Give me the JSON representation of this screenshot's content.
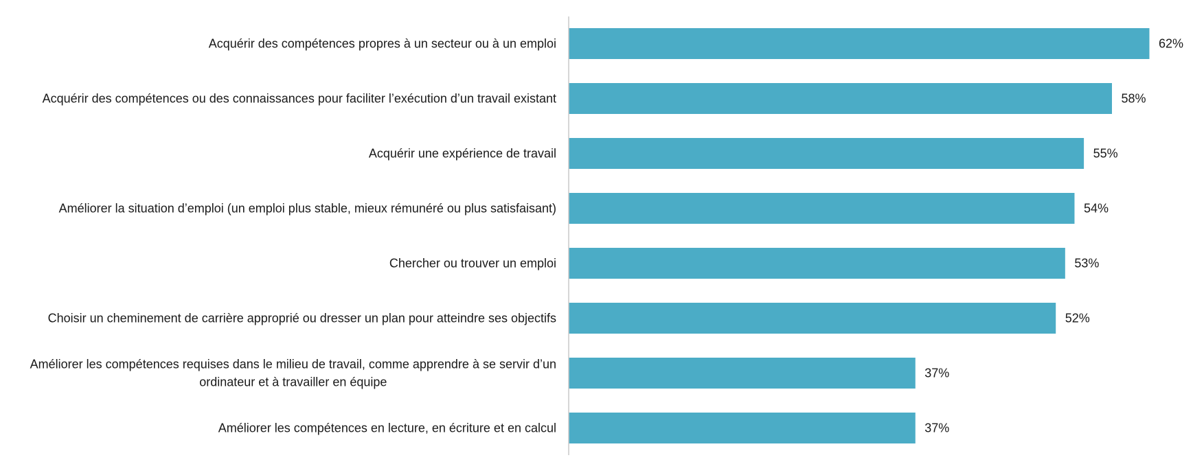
{
  "chart_data": {
    "type": "bar",
    "orientation": "horizontal",
    "title": "",
    "xlabel": "",
    "ylabel": "",
    "xlim": [
      0,
      62
    ],
    "grid": false,
    "legend": "none",
    "bar_color": "#4BACC6",
    "value_suffix": "%",
    "categories": [
      [
        "Acquérir des compétences propres à un secteur ou à un emploi"
      ],
      [
        "Acquérir des compétences ou des connaissances pour faciliter l’exécution d’un travail existant"
      ],
      [
        "Acquérir une expérience de travail"
      ],
      [
        "Améliorer la situation d’emploi (un emploi plus stable, mieux rémunéré ou plus satisfaisant)"
      ],
      [
        "Chercher ou trouver un emploi"
      ],
      [
        "Choisir un cheminement de carrière approprié ou dresser un plan pour atteindre ses objectifs"
      ],
      [
        "Améliorer les compétences requises dans le milieu de travail, comme apprendre à se servir d’un",
        "ordinateur et à travailler en équipe"
      ],
      [
        "Améliorer les compétences en lecture, en écriture et en calcul"
      ]
    ],
    "values": [
      62,
      58,
      55,
      54,
      53,
      52,
      37,
      37
    ],
    "value_labels": [
      "62%",
      "58%",
      "55%",
      "54%",
      "53%",
      "52%",
      "37%",
      "37%"
    ]
  }
}
